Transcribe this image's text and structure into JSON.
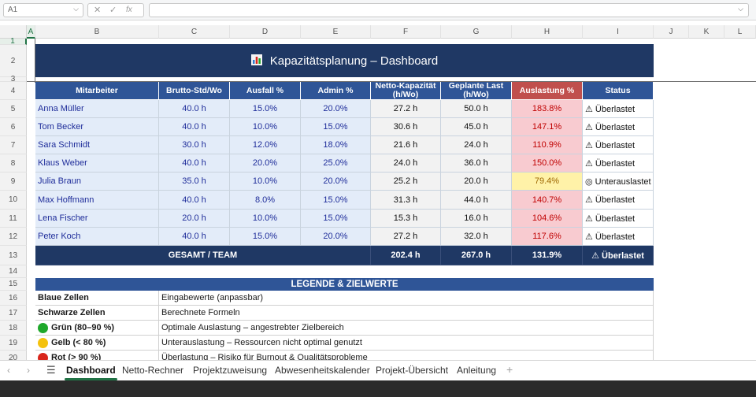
{
  "formula_bar": {
    "cell_ref": "A1",
    "fx": "fx",
    "cancel": "✕",
    "confirm": "✓"
  },
  "columns": [
    "A",
    "B",
    "C",
    "D",
    "E",
    "F",
    "G",
    "H",
    "I",
    "J",
    "K",
    "L"
  ],
  "rows": [
    "1",
    "2",
    "3",
    "4",
    "5",
    "6",
    "7",
    "8",
    "9",
    "10",
    "11",
    "12",
    "13",
    "14",
    "15",
    "16",
    "17",
    "18",
    "19",
    "20"
  ],
  "title": "Kapazitätsplanung – Dashboard",
  "table": {
    "headers": [
      "Mitarbeiter",
      "Brutto-Std/Wo",
      "Ausfall %",
      "Admin %",
      "Netto-Kapazität\n(h/Wo)",
      "Geplante Last\n(h/Wo)",
      "Auslastung %",
      "Status"
    ],
    "rows": [
      {
        "name": "Anna Müller",
        "brutto": "40.0 h",
        "ausfall": "15.0%",
        "admin": "20.0%",
        "netto": "27.2 h",
        "last": "50.0 h",
        "auslastung": "183.8%",
        "status": "⚠ Überlastet",
        "level": "red"
      },
      {
        "name": "Tom Becker",
        "brutto": "40.0 h",
        "ausfall": "10.0%",
        "admin": "15.0%",
        "netto": "30.6 h",
        "last": "45.0 h",
        "auslastung": "147.1%",
        "status": "⚠ Überlastet",
        "level": "red"
      },
      {
        "name": "Sara Schmidt",
        "brutto": "30.0 h",
        "ausfall": "12.0%",
        "admin": "18.0%",
        "netto": "21.6 h",
        "last": "24.0 h",
        "auslastung": "110.9%",
        "status": "⚠ Überlastet",
        "level": "red"
      },
      {
        "name": "Klaus Weber",
        "brutto": "40.0 h",
        "ausfall": "20.0%",
        "admin": "25.0%",
        "netto": "24.0 h",
        "last": "36.0 h",
        "auslastung": "150.0%",
        "status": "⚠ Überlastet",
        "level": "red"
      },
      {
        "name": "Julia Braun",
        "brutto": "35.0 h",
        "ausfall": "10.0%",
        "admin": "20.0%",
        "netto": "25.2 h",
        "last": "20.0 h",
        "auslastung": "79.4%",
        "status": "◎ Unterauslastet",
        "level": "yellow"
      },
      {
        "name": "Max Hoffmann",
        "brutto": "40.0 h",
        "ausfall": "8.0%",
        "admin": "15.0%",
        "netto": "31.3 h",
        "last": "44.0 h",
        "auslastung": "140.7%",
        "status": "⚠ Überlastet",
        "level": "red"
      },
      {
        "name": "Lena Fischer",
        "brutto": "20.0 h",
        "ausfall": "10.0%",
        "admin": "15.0%",
        "netto": "15.3 h",
        "last": "16.0 h",
        "auslastung": "104.6%",
        "status": "⚠ Überlastet",
        "level": "red"
      },
      {
        "name": "Peter Koch",
        "brutto": "40.0 h",
        "ausfall": "15.0%",
        "admin": "20.0%",
        "netto": "27.2 h",
        "last": "32.0 h",
        "auslastung": "117.6%",
        "status": "⚠ Überlastet",
        "level": "red"
      }
    ],
    "total": {
      "label": "GESAMT / TEAM",
      "netto": "202.4 h",
      "last": "267.0 h",
      "auslastung": "131.9%",
      "status": "⚠ Überlastet"
    }
  },
  "legend": {
    "title": "LEGENDE & ZIELWERTE",
    "rows": [
      {
        "label": "Blaue Zellen",
        "desc": "Eingabewerte (anpassbar)",
        "dot": ""
      },
      {
        "label": "Schwarze Zellen",
        "desc": "Berechnete Formeln",
        "dot": ""
      },
      {
        "label": "Grün (80–90 %)",
        "desc": "Optimale Auslastung – angestrebter Zielbereich",
        "dot": "#1fa82b"
      },
      {
        "label": "Gelb (< 80 %)",
        "desc": "Unterauslastung – Ressourcen nicht optimal genutzt",
        "dot": "#f4c20d"
      },
      {
        "label": "Rot (> 90 %)",
        "desc": "Überlastung – Risiko für Burnout & Qualitätsprobleme",
        "dot": "#d9261c"
      }
    ]
  },
  "tabs": [
    "Dashboard",
    "Netto-Rechner",
    "Projektzuweisung",
    "Abwesenheitskalender",
    "Projekt-Übersicht",
    "Anleitung"
  ],
  "add_sheet": "+",
  "colors": {
    "header_navy": "#1f3864",
    "header_blue": "#2f5597",
    "red_fill": "#f8cbd0",
    "red_text": "#c00000",
    "yellow_fill": "#fff2a8",
    "yellow_text": "#9c6500",
    "accent": "#217346"
  }
}
